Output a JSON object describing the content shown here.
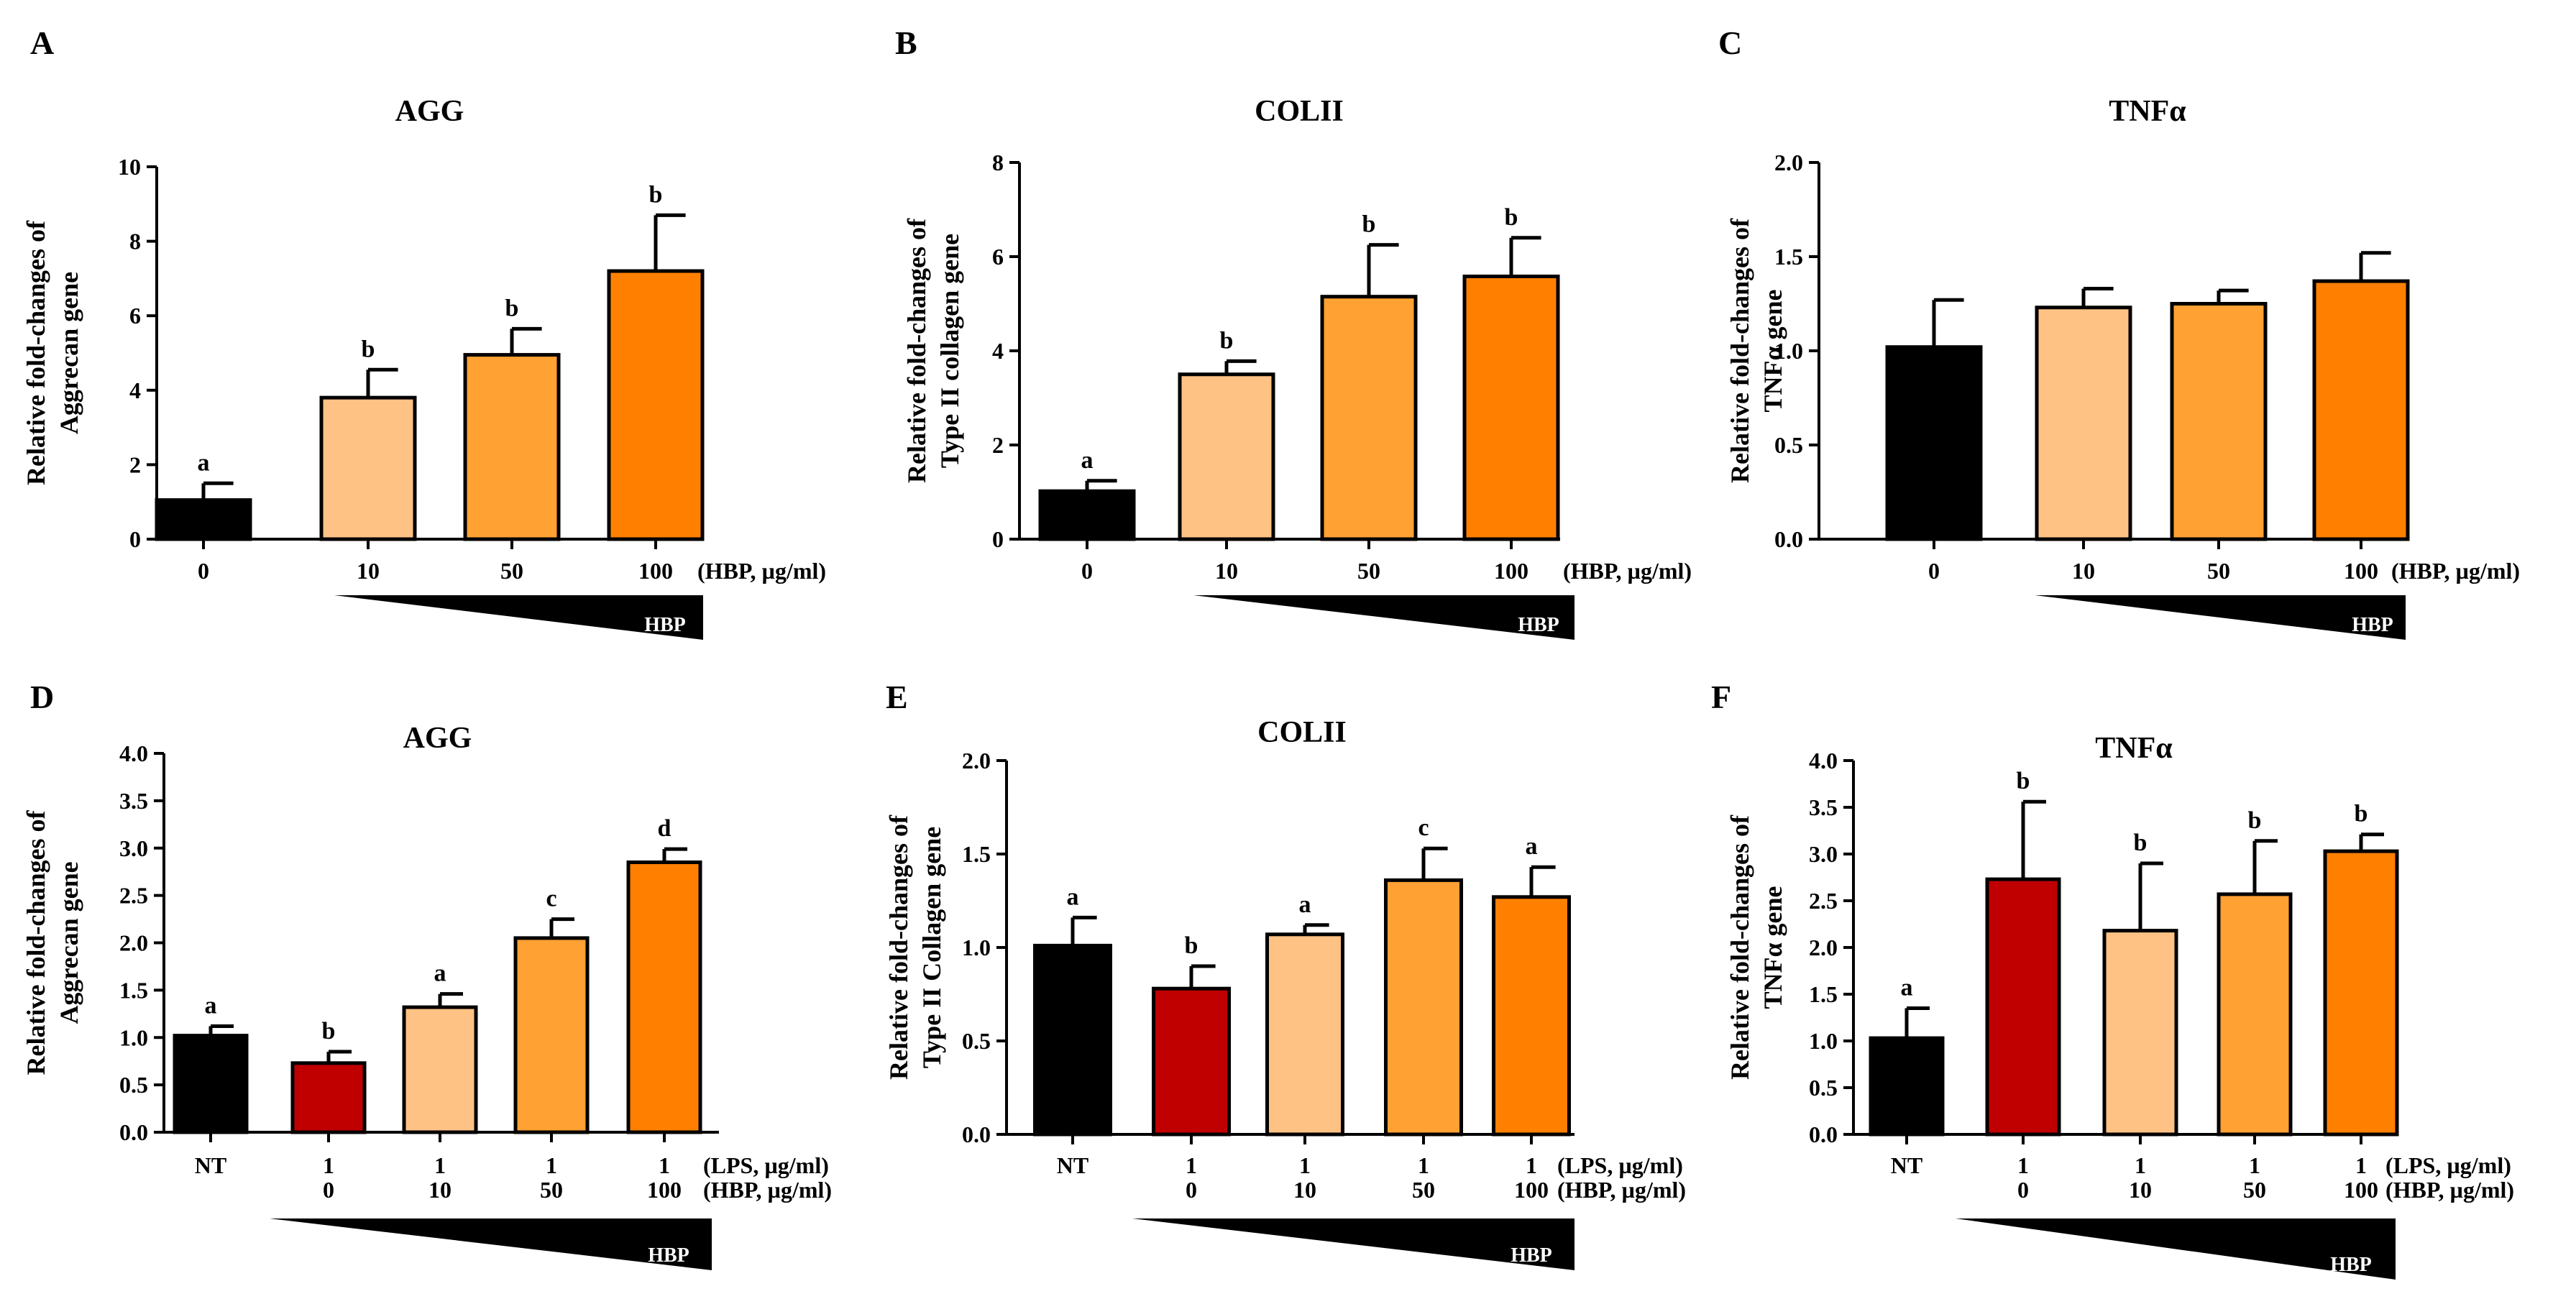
{
  "colors": {
    "black": "#000000",
    "red": "#C00000",
    "light_orange": "#FFC285",
    "mid_orange": "#FFA133",
    "dark_orange": "#FF8000"
  },
  "chart_data": [
    {
      "panel": "A",
      "type": "bar",
      "title": "AGG",
      "ylabel": [
        "Relative fold-changes of",
        "Aggrecan gene"
      ],
      "ylim": [
        0,
        10
      ],
      "yticks": [
        "0",
        "2",
        "4",
        "6",
        "8",
        "10"
      ],
      "ytick_values": [
        0,
        2,
        4,
        6,
        8,
        10
      ],
      "categories": [
        [
          "0"
        ],
        [
          "10"
        ],
        [
          "50"
        ],
        [
          "100"
        ]
      ],
      "row_units": [
        "(HBP, µg/ml)"
      ],
      "values": [
        1.05,
        3.8,
        4.95,
        7.2
      ],
      "errors": [
        0.45,
        0.75,
        0.7,
        1.5
      ],
      "sig": [
        "a",
        "b",
        "b",
        "b"
      ],
      "bar_colors": [
        "#000000",
        "#FFC285",
        "#FFA133",
        "#FF8000"
      ],
      "wedge_label": "HBP"
    },
    {
      "panel": "B",
      "type": "bar",
      "title": "COLII",
      "ylabel": [
        "Relative fold-changes of",
        "Type II collagen gene"
      ],
      "ylim": [
        0,
        8
      ],
      "yticks": [
        "0",
        "2",
        "4",
        "6",
        "8"
      ],
      "ytick_values": [
        0,
        2,
        4,
        6,
        8
      ],
      "categories": [
        [
          "0"
        ],
        [
          "10"
        ],
        [
          "50"
        ],
        [
          "100"
        ]
      ],
      "row_units": [
        "(HBP, µg/ml)"
      ],
      "values": [
        1.02,
        3.5,
        5.15,
        5.58
      ],
      "errors": [
        0.22,
        0.28,
        1.1,
        0.82
      ],
      "sig": [
        "a",
        "b",
        "b",
        "b"
      ],
      "bar_colors": [
        "#000000",
        "#FFC285",
        "#FFA133",
        "#FF8000"
      ],
      "wedge_label": "HBP"
    },
    {
      "panel": "C",
      "type": "bar",
      "title": "TNFα",
      "ylabel": [
        "Relative fold-changes of",
        "TNFα gene"
      ],
      "ylim": [
        0,
        2.0
      ],
      "yticks": [
        "0.0",
        "0.5",
        "1.0",
        "1.5",
        "2.0"
      ],
      "ytick_values": [
        0,
        0.5,
        1.0,
        1.5,
        2.0
      ],
      "categories": [
        [
          "0"
        ],
        [
          "10"
        ],
        [
          "50"
        ],
        [
          "100"
        ]
      ],
      "row_units": [
        "(HBP, µg/ml)"
      ],
      "values": [
        1.02,
        1.23,
        1.25,
        1.37
      ],
      "errors": [
        0.25,
        0.1,
        0.07,
        0.15
      ],
      "sig": [
        "",
        "",
        "",
        ""
      ],
      "bar_colors": [
        "#000000",
        "#FFC285",
        "#FFA133",
        "#FF8000"
      ],
      "wedge_label": "HBP"
    },
    {
      "panel": "D",
      "type": "bar",
      "title": "AGG",
      "ylabel": [
        "Relative fold-changes of",
        "Aggrecan gene"
      ],
      "ylim": [
        0,
        4.0
      ],
      "yticks": [
        "0.0",
        "0.5",
        "1.0",
        "1.5",
        "2.0",
        "2.5",
        "3.0",
        "3.5",
        "4.0"
      ],
      "ytick_values": [
        0,
        0.5,
        1.0,
        1.5,
        2.0,
        2.5,
        3.0,
        3.5,
        4.0
      ],
      "categories": [
        [
          "NT"
        ],
        [
          "1",
          "0"
        ],
        [
          "1",
          "10"
        ],
        [
          "1",
          "50"
        ],
        [
          "1",
          "100"
        ]
      ],
      "row_units": [
        "(LPS, µg/ml)",
        "(HBP, µg/ml)"
      ],
      "values": [
        1.02,
        0.73,
        1.32,
        2.05,
        2.85
      ],
      "errors": [
        0.1,
        0.12,
        0.14,
        0.2,
        0.14
      ],
      "sig": [
        "a",
        "b",
        "a",
        "c",
        "d"
      ],
      "bar_colors": [
        "#000000",
        "#C00000",
        "#FFC285",
        "#FFA133",
        "#FF8000"
      ],
      "wedge_label": "HBP"
    },
    {
      "panel": "E",
      "type": "bar",
      "title": "COLII",
      "ylabel": [
        "Relative fold-changes of",
        "Type II Collagen gene"
      ],
      "ylim": [
        0,
        2.0
      ],
      "yticks": [
        "0.0",
        "0.5",
        "1.0",
        "1.5",
        "2.0"
      ],
      "ytick_values": [
        0,
        0.5,
        1.0,
        1.5,
        2.0
      ],
      "categories": [
        [
          "NT"
        ],
        [
          "1",
          "0"
        ],
        [
          "1",
          "10"
        ],
        [
          "1",
          "50"
        ],
        [
          "1",
          "100"
        ]
      ],
      "row_units": [
        "(LPS, µg/ml)",
        "(HBP, µg/ml)"
      ],
      "values": [
        1.01,
        0.78,
        1.07,
        1.36,
        1.27
      ],
      "errors": [
        0.15,
        0.12,
        0.05,
        0.17,
        0.16
      ],
      "sig": [
        "a",
        "b",
        "a",
        "c",
        "a"
      ],
      "bar_colors": [
        "#000000",
        "#C00000",
        "#FFC285",
        "#FFA133",
        "#FF8000"
      ],
      "wedge_label": "HBP"
    },
    {
      "panel": "F",
      "type": "bar",
      "title": "TNFα",
      "ylabel": [
        "Relative fold-changes of",
        "TNFα gene"
      ],
      "ylim": [
        0,
        4.0
      ],
      "yticks": [
        "0.0",
        "0.5",
        "1.0",
        "1.5",
        "2.0",
        "2.5",
        "3.0",
        "3.5",
        "4.0"
      ],
      "ytick_values": [
        0,
        0.5,
        1.0,
        1.5,
        2.0,
        2.5,
        3.0,
        3.5,
        4.0
      ],
      "categories": [
        [
          "NT"
        ],
        [
          "1",
          "0"
        ],
        [
          "1",
          "10"
        ],
        [
          "1",
          "50"
        ],
        [
          "1",
          "100"
        ]
      ],
      "row_units": [
        "(LPS, µg/ml)",
        "(HBP, µg/ml)"
      ],
      "values": [
        1.03,
        2.73,
        2.18,
        2.57,
        3.03
      ],
      "errors": [
        0.32,
        0.83,
        0.72,
        0.57,
        0.18
      ],
      "sig": [
        "a",
        "b",
        "b",
        "b",
        "b"
      ],
      "bar_colors": [
        "#000000",
        "#C00000",
        "#FFC285",
        "#FFA133",
        "#FF8000"
      ],
      "wedge_label": "HBP"
    }
  ]
}
